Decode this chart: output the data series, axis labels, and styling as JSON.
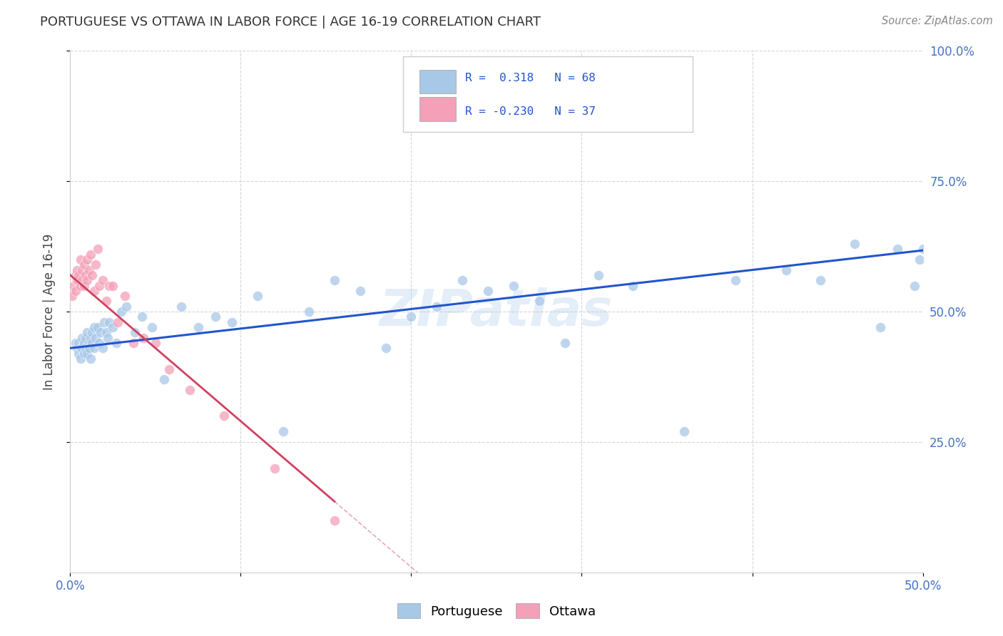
{
  "title": "PORTUGUESE VS OTTAWA IN LABOR FORCE | AGE 16-19 CORRELATION CHART",
  "source": "Source: ZipAtlas.com",
  "ylabel": "In Labor Force | Age 16-19",
  "xlim": [
    0.0,
    0.5
  ],
  "ylim": [
    0.0,
    1.0
  ],
  "xtick_labels": [
    "0.0%",
    "",
    "",
    "",
    "",
    "50.0%"
  ],
  "xtick_vals": [
    0.0,
    0.1,
    0.2,
    0.3,
    0.4,
    0.5
  ],
  "ytick_labels": [
    "25.0%",
    "50.0%",
    "75.0%",
    "100.0%"
  ],
  "ytick_vals": [
    0.25,
    0.5,
    0.75,
    1.0
  ],
  "R_portuguese": 0.318,
  "N_portuguese": 68,
  "R_ottawa": -0.23,
  "N_ottawa": 37,
  "blue_scatter": "#a8c8e8",
  "blue_line": "#2255cc",
  "pink_scatter": "#f4a0b8",
  "pink_line": "#d04060",
  "watermark": "ZIPatlas",
  "background_color": "#ffffff",
  "grid_color": "#cccccc",
  "portuguese_x": [
    0.003,
    0.004,
    0.005,
    0.005,
    0.006,
    0.006,
    0.007,
    0.007,
    0.008,
    0.008,
    0.009,
    0.009,
    0.01,
    0.01,
    0.011,
    0.011,
    0.012,
    0.012,
    0.013,
    0.013,
    0.014,
    0.014,
    0.015,
    0.016,
    0.017,
    0.018,
    0.019,
    0.02,
    0.021,
    0.022,
    0.023,
    0.025,
    0.027,
    0.03,
    0.033,
    0.038,
    0.042,
    0.048,
    0.055,
    0.065,
    0.075,
    0.085,
    0.095,
    0.11,
    0.125,
    0.14,
    0.155,
    0.17,
    0.185,
    0.2,
    0.215,
    0.23,
    0.245,
    0.26,
    0.275,
    0.29,
    0.31,
    0.33,
    0.36,
    0.39,
    0.42,
    0.44,
    0.46,
    0.475,
    0.485,
    0.495,
    0.498,
    0.5
  ],
  "portuguese_y": [
    0.44,
    0.43,
    0.44,
    0.42,
    0.43,
    0.41,
    0.45,
    0.43,
    0.44,
    0.42,
    0.45,
    0.43,
    0.46,
    0.42,
    0.44,
    0.43,
    0.45,
    0.41,
    0.44,
    0.46,
    0.43,
    0.47,
    0.45,
    0.47,
    0.44,
    0.46,
    0.43,
    0.48,
    0.46,
    0.45,
    0.48,
    0.47,
    0.44,
    0.5,
    0.51,
    0.46,
    0.49,
    0.47,
    0.37,
    0.51,
    0.47,
    0.49,
    0.48,
    0.53,
    0.27,
    0.5,
    0.56,
    0.54,
    0.43,
    0.49,
    0.51,
    0.56,
    0.54,
    0.55,
    0.52,
    0.44,
    0.57,
    0.55,
    0.27,
    0.56,
    0.58,
    0.56,
    0.63,
    0.47,
    0.62,
    0.55,
    0.6,
    0.62
  ],
  "ottawa_x": [
    0.001,
    0.002,
    0.003,
    0.003,
    0.004,
    0.004,
    0.005,
    0.006,
    0.006,
    0.007,
    0.007,
    0.008,
    0.008,
    0.009,
    0.01,
    0.01,
    0.011,
    0.012,
    0.013,
    0.014,
    0.015,
    0.016,
    0.017,
    0.019,
    0.021,
    0.023,
    0.025,
    0.028,
    0.032,
    0.037,
    0.043,
    0.05,
    0.058,
    0.07,
    0.09,
    0.12,
    0.155
  ],
  "ottawa_y": [
    0.53,
    0.55,
    0.57,
    0.54,
    0.56,
    0.58,
    0.57,
    0.55,
    0.6,
    0.58,
    0.56,
    0.59,
    0.55,
    0.57,
    0.6,
    0.56,
    0.58,
    0.61,
    0.57,
    0.54,
    0.59,
    0.62,
    0.55,
    0.56,
    0.52,
    0.55,
    0.55,
    0.48,
    0.53,
    0.44,
    0.45,
    0.44,
    0.39,
    0.35,
    0.3,
    0.2,
    0.1
  ]
}
